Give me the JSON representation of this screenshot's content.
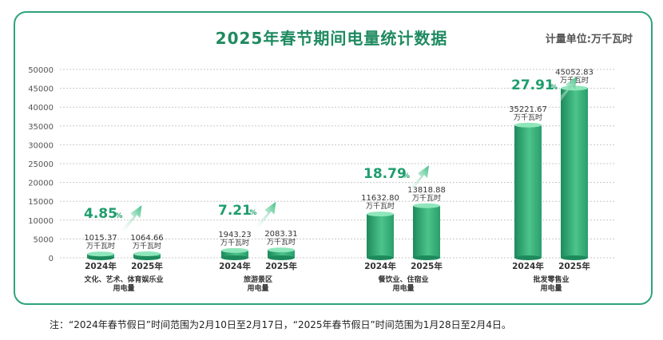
{
  "title": "2025年春节期间电量统计数据",
  "unit_label": "计量单位:万千瓦时",
  "footnote": "注：“2024年春节假日”时间范围为2月10日至2月17日，“2025年春节假日”时间范围为1月28日至2月4日。",
  "chart_data": {
    "type": "bar",
    "y_ticks": [
      "0",
      "5000",
      "10000",
      "15000",
      "20000",
      "25000",
      "30000",
      "35000",
      "40000",
      "45000",
      "50000"
    ],
    "ylim": [
      0,
      50000
    ],
    "series_names": [
      "2024年",
      "2025年"
    ],
    "value_unit": "万千瓦时",
    "groups": [
      {
        "label_lines": [
          "文化、艺术、体育娱乐业",
          "用电量"
        ],
        "values": [
          1015.37,
          1064.66
        ],
        "value_labels": [
          "1015.37",
          "1064.66"
        ],
        "growth": "4.85",
        "growth_unit": "%"
      },
      {
        "label_lines": [
          "旅游景区",
          "用电量"
        ],
        "values": [
          1943.23,
          2083.31
        ],
        "value_labels": [
          "1943.23",
          "2083.31"
        ],
        "growth": "7.21",
        "growth_unit": "%"
      },
      {
        "label_lines": [
          "餐饮业、住宿业",
          "用电量"
        ],
        "values": [
          11632.8,
          13818.88
        ],
        "value_labels": [
          "11632.80",
          "13818.88"
        ],
        "growth": "18.79",
        "growth_unit": "%"
      },
      {
        "label_lines": [
          "批发零售业",
          "用电量"
        ],
        "values": [
          35221.67,
          45052.83
        ],
        "value_labels": [
          "35221.67",
          "45052.83"
        ],
        "growth": "27.91",
        "growth_unit": "%"
      }
    ],
    "colors": {
      "bar_dark": "#1d8a5c",
      "bar_light": "#5fcf9a",
      "top_light": "#8fe6bb",
      "accent": "#1f9e6c",
      "grid": "#c8c8c8"
    }
  }
}
